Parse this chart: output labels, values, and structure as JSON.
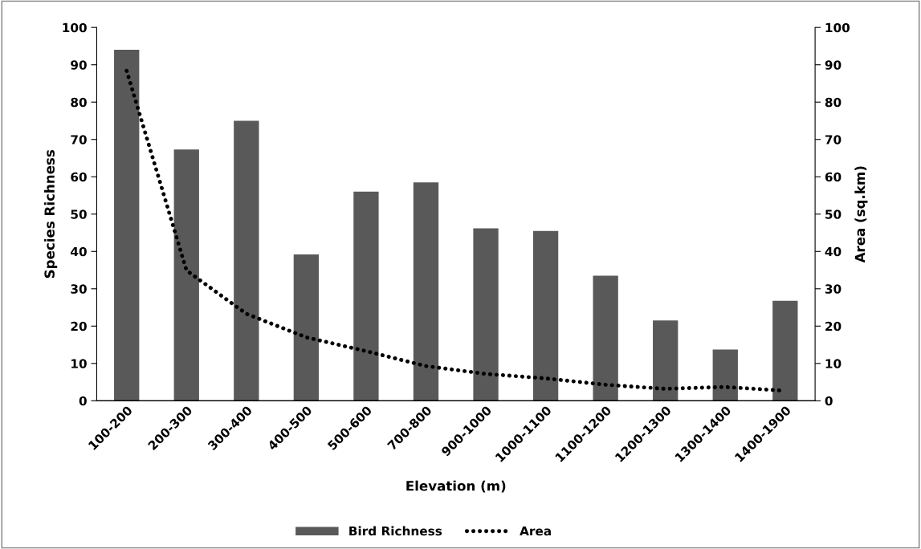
{
  "chart_data": {
    "type": "bar",
    "xlabel": "Elevation (m)",
    "ylabel": "Species Richness",
    "y2label": "Area (sq.km)",
    "categories": [
      "100-200",
      "200-300",
      "300-400",
      "400-500",
      "500-600",
      "700-800",
      "900-1000",
      "1000-1100",
      "1100-1200",
      "1200-1300",
      "1300-1400",
      "1400-1900"
    ],
    "series": [
      {
        "name": "Bird Richness",
        "color": "#595959",
        "values": [
          94,
          67.3,
          75,
          39.2,
          56,
          58.5,
          46.2,
          45.5,
          33.5,
          21.5,
          13.7,
          26.8
        ]
      },
      {
        "name": "Area",
        "type": "line",
        "axis": "y2",
        "color": "#000000",
        "line_style": "dotted",
        "values": [
          88.4,
          34.9,
          23.3,
          17.0,
          13.3,
          9.3,
          7.2,
          6.0,
          4.3,
          3.2,
          3.7,
          2.7
        ]
      }
    ],
    "ylim": [
      0,
      100
    ],
    "yticks": [
      0,
      10,
      20,
      30,
      40,
      50,
      60,
      70,
      80,
      90,
      100
    ],
    "y2lim": [
      0,
      100
    ],
    "y2ticks": [
      0,
      10,
      20,
      30,
      40,
      50,
      60,
      70,
      80,
      90,
      100
    ],
    "grid": false,
    "legend": "bottom"
  }
}
